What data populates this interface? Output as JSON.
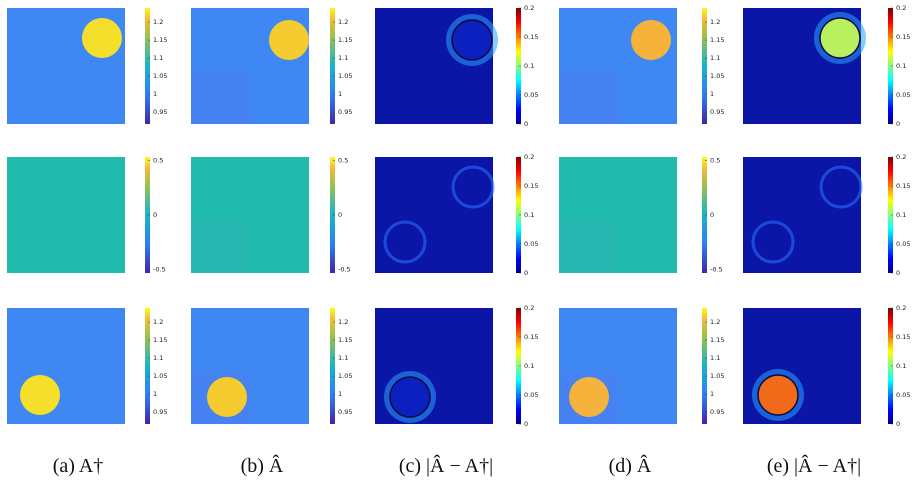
{
  "rows": [
    {
      "colorbars": [
        {
          "map": "parula",
          "lim": [
            0.917,
            1.239
          ],
          "ticks": [
            0.95,
            1,
            1.05,
            1.1,
            1.15,
            1.2
          ]
        },
        {
          "map": "parula",
          "lim": [
            0.917,
            1.239
          ],
          "ticks": [
            0.95,
            1,
            1.05,
            1.1,
            1.15,
            1.2
          ]
        },
        {
          "map": "jet",
          "lim": [
            0,
            0.2
          ],
          "ticks": [
            0,
            0.05,
            0.1,
            0.15,
            0.2
          ]
        },
        {
          "map": "parula",
          "lim": [
            0.917,
            1.239
          ],
          "ticks": [
            0.95,
            1,
            1.05,
            1.1,
            1.15,
            1.2
          ]
        },
        {
          "map": "jet",
          "lim": [
            0,
            0.2
          ],
          "ticks": [
            0,
            0.05,
            0.1,
            0.15,
            0.2
          ]
        }
      ]
    },
    {
      "colorbars": [
        {
          "map": "parula",
          "lim": [
            -0.53,
            0.53
          ],
          "ticks": [
            -0.5,
            0,
            0.5
          ]
        },
        {
          "map": "parula",
          "lim": [
            -0.53,
            0.53
          ],
          "ticks": [
            -0.5,
            0,
            0.5
          ]
        },
        {
          "map": "jet",
          "lim": [
            0,
            0.2
          ],
          "ticks": [
            0,
            0.05,
            0.1,
            0.15,
            0.2
          ]
        },
        {
          "map": "parula",
          "lim": [
            -0.53,
            0.53
          ],
          "ticks": [
            -0.5,
            0,
            0.5
          ]
        },
        {
          "map": "jet",
          "lim": [
            0,
            0.2
          ],
          "ticks": [
            0,
            0.05,
            0.1,
            0.15,
            0.2
          ]
        }
      ]
    },
    {
      "colorbars": [
        {
          "map": "parula",
          "lim": [
            0.917,
            1.239
          ],
          "ticks": [
            0.95,
            1,
            1.05,
            1.1,
            1.15,
            1.2
          ]
        },
        {
          "map": "parula",
          "lim": [
            0.917,
            1.239
          ],
          "ticks": [
            0.95,
            1,
            1.05,
            1.1,
            1.15,
            1.2
          ]
        },
        {
          "map": "jet",
          "lim": [
            0,
            0.2
          ],
          "ticks": [
            0,
            0.05,
            0.1,
            0.15,
            0.2
          ]
        },
        {
          "map": "parula",
          "lim": [
            0.917,
            1.239
          ],
          "ticks": [
            0.95,
            1,
            1.05,
            1.1,
            1.15,
            1.2
          ]
        },
        {
          "map": "jet",
          "lim": [
            0,
            0.2
          ],
          "ticks": [
            0,
            0.05,
            0.1,
            0.15,
            0.2
          ]
        }
      ]
    }
  ],
  "captions": [
    "(a) A†",
    "(b) Â",
    "(c) |Â − A†|",
    "(d) Â",
    "(e) |Â − A†|"
  ]
}
